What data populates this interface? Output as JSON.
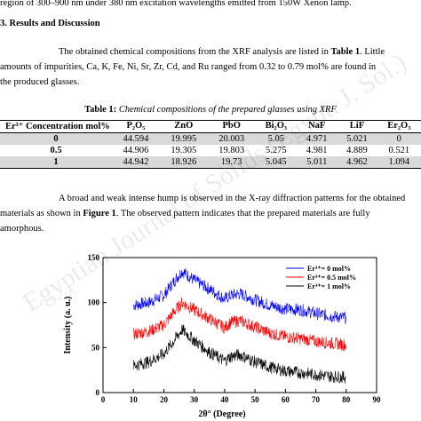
{
  "body": {
    "line1": "region of 300–900 nm under 380 nm excitation wavelengths emitted from 150W Xenon lamp.",
    "section_heading": "3.  Results and Discussion",
    "para1": {
      "l1_start": "The obtained chemical compositions from the XRF analysis are listed in ",
      "l1_table": "Table 1",
      "l1_end": ". Little",
      "l2": "amounts of impurities, Ca, K, Fe, Ni, Sr, Zr, Cd, and Ru ranged from 0.32 to 0.79 mol% are found in",
      "l3": "the produced glasses."
    },
    "para2": {
      "l1": "A broad and weak intense hump is observed in the X-ray diffraction patterns for the obtained",
      "l2_start": "materials as shown in ",
      "l2_fig": "Figure 1",
      "l2_end": ". The observed pattern indicates that the prepared materials are fully",
      "l3": "amorphous."
    }
  },
  "table": {
    "caption_label": "Table 1:",
    "caption_text": " Chemical compositions of the prepared glasses using XRF",
    "headers": [
      "Er³⁺ Concentration mol%",
      "P₂O₅",
      "ZnO",
      "PbO",
      "Bi₂O₃",
      "NaF",
      "LiF",
      "Er₂O₃"
    ],
    "rows": [
      [
        "0",
        "44.594",
        "19.995",
        "20.003",
        "5.05",
        "4.971",
        "5.021",
        "0"
      ],
      [
        "0.5",
        "44.906",
        "19.305",
        "19.803",
        "5.275",
        "4.981",
        "4.889",
        "0.521"
      ],
      [
        "1",
        "44.942",
        "18.926",
        "19.73",
        "5.045",
        "5.011",
        "4.962",
        "1.094"
      ]
    ]
  },
  "watermark": "Egyptian Journal of Solids (Egypt. J. Sol.)",
  "chart_data": {
    "type": "line",
    "xlabel": "2θ° (Degree)",
    "ylabel": "Intensity (a. u.)",
    "xlim": [
      0,
      90
    ],
    "ylim": [
      0,
      150
    ],
    "xticks": [
      0,
      10,
      20,
      30,
      40,
      50,
      60,
      70,
      80,
      90
    ],
    "yticks": [
      0,
      50,
      100,
      150
    ],
    "legend_position": "top-right",
    "series": [
      {
        "name": "Er³⁺= 0 mol%",
        "color": "#0000ff",
        "x": [
          10,
          15,
          20,
          23,
          26,
          28,
          30,
          35,
          40,
          42,
          45,
          50,
          55,
          60,
          65,
          70,
          75,
          80
        ],
        "y": [
          97,
          100,
          108,
          122,
          135,
          130,
          125,
          115,
          104,
          108,
          110,
          103,
          97,
          93,
          92,
          88,
          85,
          83
        ]
      },
      {
        "name": "Er³⁺= 0.5 mol%",
        "color": "#ff0000",
        "x": [
          10,
          15,
          20,
          23,
          26,
          28,
          30,
          35,
          40,
          42,
          45,
          50,
          55,
          60,
          65,
          70,
          75,
          80
        ],
        "y": [
          65,
          68,
          75,
          88,
          100,
          96,
          92,
          82,
          72,
          78,
          80,
          73,
          66,
          62,
          60,
          57,
          55,
          53
        ]
      },
      {
        "name": "Er³⁺= 1 mol%",
        "color": "#000000",
        "x": [
          10,
          15,
          20,
          23,
          26,
          28,
          30,
          35,
          40,
          42,
          45,
          50,
          55,
          60,
          65,
          70,
          75,
          80
        ],
        "y": [
          30,
          34,
          43,
          56,
          70,
          64,
          58,
          45,
          35,
          40,
          42,
          34,
          28,
          24,
          22,
          20,
          18,
          17
        ]
      }
    ]
  }
}
